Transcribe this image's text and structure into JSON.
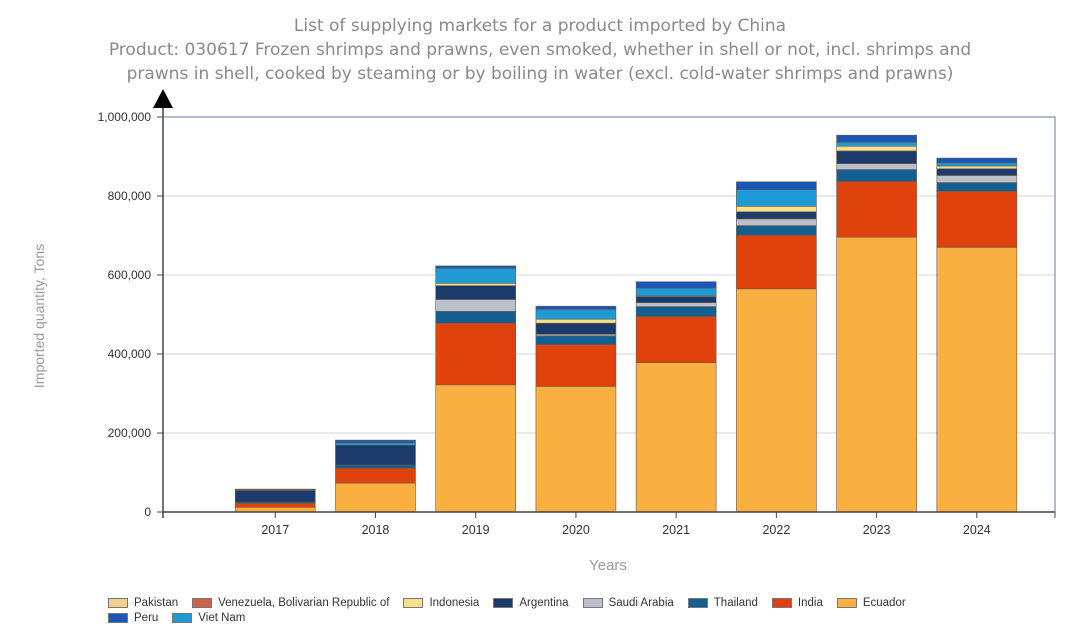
{
  "chart_data": {
    "type": "bar",
    "stacked": true,
    "title": "List of supplying markets for a product imported by China",
    "subtitle_lines": [
      "Product: 030617 Frozen shrimps and prawns, even smoked, whether in shell or not, incl. shrimps and",
      "prawns in shell, cooked by steaming or by boiling in water (excl. cold-water shrimps and prawns)"
    ],
    "xlabel": "Years",
    "ylabel": "Imported quantity, Tons",
    "ylim": [
      0,
      1000000
    ],
    "yticks": [
      "0",
      "200,000",
      "400,000",
      "600,000",
      "800,000",
      "1,000,000"
    ],
    "ytick_values": [
      0,
      200000,
      400000,
      600000,
      800000,
      1000000
    ],
    "grid": true,
    "legend_position": "bottom",
    "categories": [
      "2017",
      "2018",
      "2019",
      "2020",
      "2021",
      "2022",
      "2023",
      "2024"
    ],
    "series": [
      {
        "name": "Ecuador",
        "color": "#F9B040",
        "values": [
          12000,
          73000,
          322000,
          318000,
          378000,
          565000,
          696000,
          670000
        ]
      },
      {
        "name": "India",
        "color": "#E0420D",
        "values": [
          10000,
          38000,
          156000,
          106000,
          117000,
          136000,
          141000,
          142000
        ]
      },
      {
        "name": "Thailand",
        "color": "#145F91",
        "values": [
          3000,
          8000,
          30000,
          22000,
          25000,
          24000,
          30000,
          22000
        ]
      },
      {
        "name": "Saudi Arabia",
        "color": "#BCC0C8",
        "values": [
          0,
          0,
          30000,
          4000,
          10000,
          17000,
          15000,
          18000
        ]
      },
      {
        "name": "Argentina",
        "color": "#1C3A6C",
        "values": [
          30000,
          50000,
          35000,
          28000,
          15000,
          18000,
          32000,
          17000
        ]
      },
      {
        "name": "Indonesia",
        "color": "#F5E08E",
        "values": [
          0,
          0,
          6000,
          10000,
          2000,
          14000,
          12000,
          7000
        ]
      },
      {
        "name": "Viet Nam",
        "color": "#1E9AD6",
        "values": [
          0,
          6000,
          38000,
          25000,
          20000,
          42000,
          10000,
          8000
        ]
      },
      {
        "name": "Peru",
        "color": "#1A56B8",
        "values": [
          1000,
          7000,
          6000,
          8000,
          16000,
          20000,
          18000,
          12000
        ]
      },
      {
        "name": "Venezuela, Bolivarian Republic of",
        "color": "#C8644A",
        "values": [
          2000,
          0,
          0,
          0,
          0,
          0,
          0,
          0
        ]
      },
      {
        "name": "Pakistan",
        "color": "#F2D08A",
        "values": [
          0,
          0,
          0,
          0,
          0,
          0,
          0,
          0
        ]
      }
    ],
    "legend_order": [
      [
        "Pakistan",
        "Venezuela, Bolivarian Republic of",
        "Indonesia",
        "Argentina",
        "Saudi Arabia",
        "Thailand",
        "India",
        "Ecuador"
      ],
      [
        "Peru",
        "Viet Nam"
      ]
    ]
  }
}
